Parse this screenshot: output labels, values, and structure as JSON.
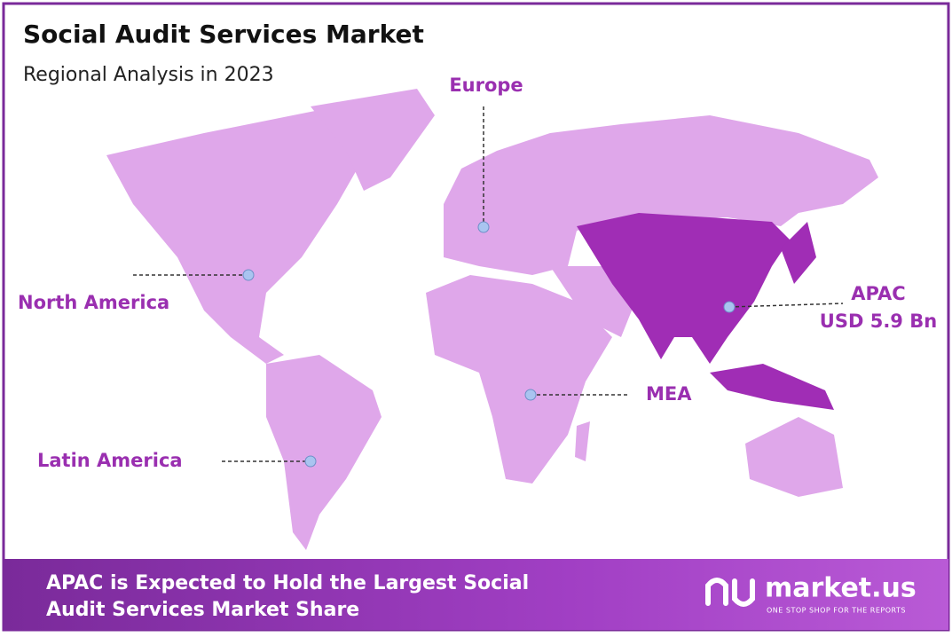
{
  "header": {
    "title": "Social Audit Services Market",
    "subtitle": "Regional Analysis in 2023"
  },
  "regions": [
    {
      "name": "Europe"
    },
    {
      "name": "North America"
    },
    {
      "name": "Latin America"
    },
    {
      "name": "MEA"
    },
    {
      "name": "APAC",
      "value": "USD 5.9 Bn"
    }
  ],
  "footer": {
    "lines": [
      "APAC is Expected to Hold the Largest Social",
      "Audit Services Market Share"
    ],
    "logo": "market.us",
    "tagline": "ONE STOP SHOP FOR THE REPORTS"
  }
}
